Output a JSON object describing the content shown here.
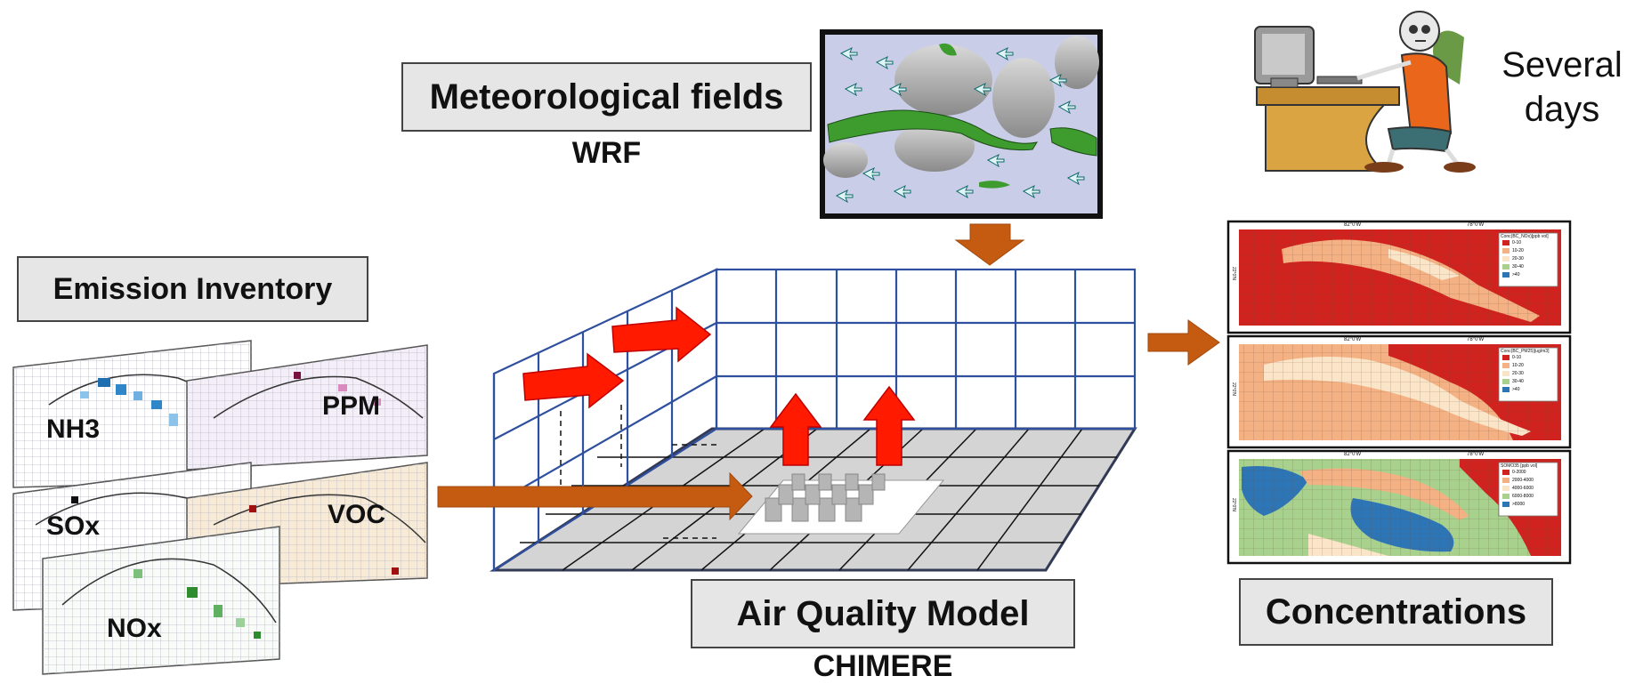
{
  "labels": {
    "meteo_box": "Meteorological fields",
    "meteo_sub": "WRF",
    "emission_box": "Emission Inventory",
    "aq_box": "Air Quality Model",
    "aq_sub": "CHIMERE",
    "conc_box": "Concentrations",
    "duration_line1": "Several",
    "duration_line2": "days"
  },
  "emission_layers": [
    "NH3",
    "PPM",
    "SOx",
    "VOC",
    "NOx"
  ],
  "concentration_maps": [
    {
      "legend_title": "Conc(BC_NOx)[ppb vol]",
      "legend_items": [
        "0-10",
        "10-20",
        "20-30",
        "30-40",
        ">40"
      ]
    },
    {
      "legend_title": "Conc(BC_PM25)[ug/m3]",
      "legend_items": [
        "0-10",
        "10-20",
        "20-30",
        "30-40",
        ">40"
      ]
    },
    {
      "legend_title": "SOMO35 [ppb vol]",
      "legend_items": [
        "0-2000",
        "2000-4000",
        "4000-6000",
        "6000-8000",
        ">8000"
      ]
    }
  ],
  "map_ticks": {
    "lon_left": "82°0'W",
    "lon_right": "78°0'W",
    "lat": "22°0'N"
  },
  "colors": {
    "arrow_orange": "#c55a11",
    "arrow_red": "#ff0000",
    "grid_blue": "#2f4f9f",
    "box_fill": "#e6e6e6"
  }
}
